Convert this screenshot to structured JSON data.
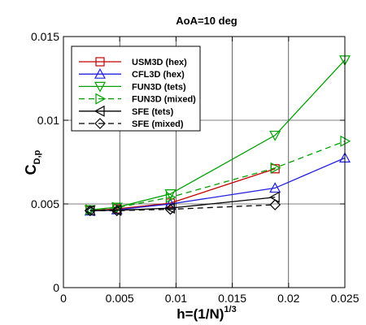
{
  "chart_data": {
    "type": "line",
    "title": "AoA=10 deg",
    "xlabel": {
      "main": "h=(1/N)",
      "sup": "1/3"
    },
    "ylabel": {
      "main": "C",
      "sub": "D,p"
    },
    "xlim": [
      0,
      0.025
    ],
    "ylim": [
      0,
      0.015
    ],
    "x_ticks": [
      "0",
      "0.005",
      "0.01",
      "0.015",
      "0.02",
      "0.025"
    ],
    "y_ticks": [
      "0",
      "0.005",
      "0.01",
      "0.015"
    ],
    "grid": true,
    "legend_position": "top-left",
    "series": [
      {
        "name": "USM3D (hex)",
        "color": "#c00000",
        "marker": "square",
        "dash": "solid",
        "x": [
          0.00237,
          0.00475,
          0.0095,
          0.0188
        ],
        "y": [
          0.0046,
          0.0047,
          0.00505,
          0.0071
        ]
      },
      {
        "name": "CFL3D (hex)",
        "color": "#2020e0",
        "marker": "triangle-up",
        "dash": "solid",
        "x": [
          0.00237,
          0.00475,
          0.0095,
          0.0188,
          0.025
        ],
        "y": [
          0.00458,
          0.00465,
          0.005,
          0.00595,
          0.00775
        ]
      },
      {
        "name": "FUN3D (tets)",
        "color": "#00a000",
        "marker": "triangle-down",
        "dash": "solid",
        "x": [
          0.00237,
          0.00475,
          0.0095,
          0.0188,
          0.025
        ],
        "y": [
          0.00465,
          0.0048,
          0.0056,
          0.0091,
          0.0136
        ]
      },
      {
        "name": "FUN3D (mixed)",
        "color": "#00a000",
        "marker": "triangle-right",
        "dash": "dashed",
        "x": [
          0.00237,
          0.00475,
          0.0095,
          0.0188,
          0.025
        ],
        "y": [
          0.00465,
          0.00478,
          0.0054,
          0.00715,
          0.00875
        ]
      },
      {
        "name": "SFE (tets)",
        "color": "#000000",
        "marker": "triangle-left",
        "dash": "solid",
        "x": [
          0.00237,
          0.00475,
          0.0095,
          0.0188
        ],
        "y": [
          0.0046,
          0.00462,
          0.00475,
          0.0054
        ]
      },
      {
        "name": "SFE (mixed)",
        "color": "#000000",
        "marker": "diamond",
        "dash": "dashed",
        "x": [
          0.00237,
          0.00475,
          0.0095,
          0.0188
        ],
        "y": [
          0.0046,
          0.0046,
          0.00468,
          0.00495
        ]
      }
    ]
  }
}
